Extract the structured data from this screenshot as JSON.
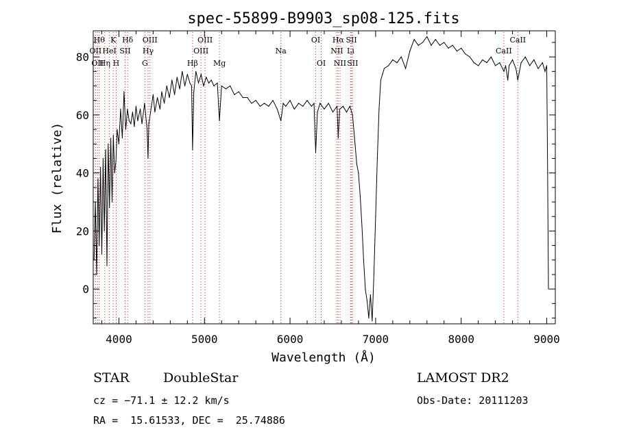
{
  "chart_data": {
    "type": "line",
    "title": "spec-55899-B9903_sp08-125.fits",
    "xlabel": "Wavelength (Å)",
    "ylabel": "Flux (relative)",
    "xlim": [
      3700,
      9100
    ],
    "ylim": [
      -12,
      89
    ],
    "xticks": [
      4000,
      5000,
      6000,
      7000,
      8000,
      9000
    ],
    "yticks": [
      0,
      20,
      40,
      60,
      80
    ],
    "grid": false,
    "series": [
      {
        "values": [
          [
            3710,
            10
          ],
          [
            3725,
            30
          ],
          [
            3740,
            5
          ],
          [
            3755,
            38
          ],
          [
            3770,
            15
          ],
          [
            3785,
            42
          ],
          [
            3800,
            12
          ],
          [
            3815,
            45
          ],
          [
            3830,
            20
          ],
          [
            3845,
            48
          ],
          [
            3860,
            8
          ],
          [
            3875,
            50
          ],
          [
            3890,
            28
          ],
          [
            3905,
            52
          ],
          [
            3920,
            30
          ],
          [
            3935,
            53
          ],
          [
            3950,
            40
          ],
          [
            3965,
            44
          ],
          [
            3980,
            55
          ],
          [
            4000,
            50
          ],
          [
            4020,
            62
          ],
          [
            4040,
            52
          ],
          [
            4060,
            68
          ],
          [
            4080,
            55
          ],
          [
            4100,
            62
          ],
          [
            4120,
            58
          ],
          [
            4140,
            57
          ],
          [
            4160,
            61
          ],
          [
            4180,
            56
          ],
          [
            4200,
            63
          ],
          [
            4220,
            58
          ],
          [
            4250,
            62
          ],
          [
            4270,
            57
          ],
          [
            4300,
            64
          ],
          [
            4330,
            55
          ],
          [
            4340,
            45
          ],
          [
            4350,
            57
          ],
          [
            4380,
            63
          ],
          [
            4400,
            67
          ],
          [
            4420,
            61
          ],
          [
            4450,
            66
          ],
          [
            4480,
            62
          ],
          [
            4500,
            68
          ],
          [
            4530,
            64
          ],
          [
            4560,
            70
          ],
          [
            4590,
            66
          ],
          [
            4620,
            72
          ],
          [
            4650,
            67
          ],
          [
            4680,
            73
          ],
          [
            4710,
            69
          ],
          [
            4740,
            75
          ],
          [
            4770,
            70
          ],
          [
            4800,
            74
          ],
          [
            4830,
            71
          ],
          [
            4850,
            70
          ],
          [
            4861,
            48
          ],
          [
            4875,
            68
          ],
          [
            4900,
            75
          ],
          [
            4930,
            71
          ],
          [
            4960,
            74
          ],
          [
            4990,
            70
          ],
          [
            5020,
            73
          ],
          [
            5050,
            71
          ],
          [
            5080,
            72
          ],
          [
            5110,
            70
          ],
          [
            5150,
            71
          ],
          [
            5175,
            58
          ],
          [
            5200,
            70
          ],
          [
            5250,
            69
          ],
          [
            5300,
            70
          ],
          [
            5350,
            67
          ],
          [
            5400,
            68
          ],
          [
            5450,
            66
          ],
          [
            5500,
            66
          ],
          [
            5550,
            64
          ],
          [
            5600,
            65
          ],
          [
            5650,
            63
          ],
          [
            5700,
            64
          ],
          [
            5750,
            63
          ],
          [
            5800,
            65
          ],
          [
            5850,
            62
          ],
          [
            5893,
            58
          ],
          [
            5920,
            64
          ],
          [
            5950,
            63
          ],
          [
            6000,
            65
          ],
          [
            6050,
            62
          ],
          [
            6100,
            64
          ],
          [
            6150,
            63
          ],
          [
            6200,
            65
          ],
          [
            6250,
            63
          ],
          [
            6280,
            64
          ],
          [
            6300,
            47
          ],
          [
            6320,
            61
          ],
          [
            6350,
            64
          ],
          [
            6400,
            62
          ],
          [
            6450,
            64
          ],
          [
            6500,
            61
          ],
          [
            6550,
            63
          ],
          [
            6563,
            52
          ],
          [
            6580,
            62
          ],
          [
            6620,
            63
          ],
          [
            6660,
            61
          ],
          [
            6700,
            63
          ],
          [
            6730,
            60
          ],
          [
            6760,
            50
          ],
          [
            6780,
            43
          ],
          [
            6800,
            40
          ],
          [
            6820,
            32
          ],
          [
            6840,
            22
          ],
          [
            6860,
            10
          ],
          [
            6880,
            0
          ],
          [
            6900,
            -4
          ],
          [
            6920,
            -10
          ],
          [
            6940,
            -2
          ],
          [
            6960,
            -11
          ],
          [
            6980,
            5
          ],
          [
            7000,
            25
          ],
          [
            7020,
            45
          ],
          [
            7040,
            62
          ],
          [
            7060,
            72
          ],
          [
            7080,
            74
          ],
          [
            7100,
            76
          ],
          [
            7150,
            77
          ],
          [
            7200,
            79
          ],
          [
            7250,
            78
          ],
          [
            7300,
            80
          ],
          [
            7350,
            76
          ],
          [
            7400,
            82
          ],
          [
            7450,
            86
          ],
          [
            7500,
            84
          ],
          [
            7550,
            85
          ],
          [
            7600,
            87
          ],
          [
            7650,
            84
          ],
          [
            7700,
            86
          ],
          [
            7750,
            84
          ],
          [
            7800,
            85
          ],
          [
            7850,
            83
          ],
          [
            7900,
            84
          ],
          [
            7950,
            82
          ],
          [
            8000,
            83
          ],
          [
            8050,
            81
          ],
          [
            8100,
            80
          ],
          [
            8150,
            78
          ],
          [
            8200,
            77
          ],
          [
            8250,
            79
          ],
          [
            8300,
            78
          ],
          [
            8350,
            80
          ],
          [
            8400,
            77
          ],
          [
            8450,
            78
          ],
          [
            8500,
            75
          ],
          [
            8520,
            77
          ],
          [
            8545,
            72
          ],
          [
            8560,
            77
          ],
          [
            8600,
            79
          ],
          [
            8640,
            76
          ],
          [
            8662,
            72
          ],
          [
            8700,
            78
          ],
          [
            8750,
            80
          ],
          [
            8800,
            77
          ],
          [
            8850,
            79
          ],
          [
            8900,
            76
          ],
          [
            8950,
            78
          ],
          [
            8980,
            75
          ],
          [
            9000,
            77
          ],
          [
            9010,
            40
          ],
          [
            9020,
            0
          ]
        ]
      }
    ],
    "line_markers": [
      {
        "w": 3727,
        "label": "OII",
        "row": 1
      },
      {
        "w": 3750,
        "label": "OII",
        "row": 2
      },
      {
        "w": 3770,
        "label": "Hθ",
        "row": 0
      },
      {
        "w": 3835,
        "label": "Hη",
        "row": 2
      },
      {
        "w": 3889,
        "label": "HeI",
        "row": 1
      },
      {
        "w": 3934,
        "label": "K",
        "row": 0
      },
      {
        "w": 3968,
        "label": "H",
        "row": 2
      },
      {
        "w": 4072,
        "label": "SII",
        "row": 1
      },
      {
        "w": 4102,
        "label": "Hδ",
        "row": 0
      },
      {
        "w": 4304,
        "label": "G",
        "row": 2
      },
      {
        "w": 4341,
        "label": "Hγ",
        "row": 1
      },
      {
        "w": 4363,
        "label": "OIII",
        "row": 0
      },
      {
        "w": 4861,
        "label": "Hβ",
        "row": 2
      },
      {
        "w": 4959,
        "label": "OIII",
        "row": 1
      },
      {
        "w": 5007,
        "label": "OIII",
        "row": 0
      },
      {
        "w": 5175,
        "label": "Mg",
        "row": 2
      },
      {
        "w": 5893,
        "label": "Na",
        "row": 1
      },
      {
        "w": 6300,
        "label": "OI",
        "row": 0
      },
      {
        "w": 6364,
        "label": "OI",
        "row": 2
      },
      {
        "w": 6548,
        "label": "NII",
        "row": 1
      },
      {
        "w": 6563,
        "label": "Hα",
        "row": 0
      },
      {
        "w": 6584,
        "label": "NII",
        "row": 2
      },
      {
        "w": 6708,
        "label": "Li",
        "row": 1
      },
      {
        "w": 6717,
        "label": "SII",
        "row": 0
      },
      {
        "w": 6731,
        "label": "SII",
        "row": 2
      },
      {
        "w": 8498,
        "label": "CaII",
        "row": 1
      },
      {
        "w": 8662,
        "label": "CaII",
        "row": 0
      }
    ]
  },
  "info": {
    "object_class": "STAR",
    "subclass": "DoubleStar",
    "survey": "LAMOST DR2",
    "cz": "cz = −71.1 ± 12.2 km/s",
    "obs_date": "Obs-Date: 20111203",
    "coords": "RA =  15.61533, DEC =  25.74886"
  },
  "colors": {
    "spectrum": "#000000",
    "marker": "#d02020",
    "axes": "#000000"
  }
}
